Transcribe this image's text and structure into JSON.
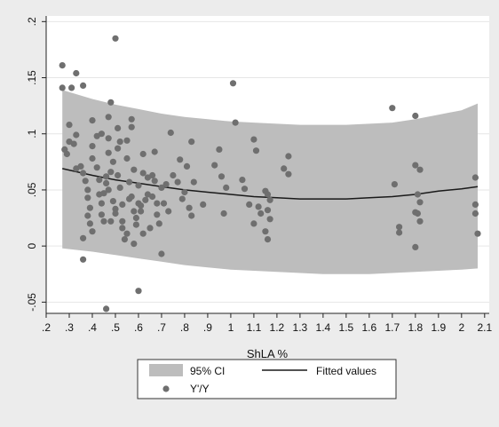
{
  "chart_data": {
    "type": "scatter",
    "title": "",
    "xlabel": "ShLA %",
    "ylabel": "",
    "xlim": [
      0.2,
      2.12
    ],
    "ylim": [
      -0.06,
      0.205
    ],
    "x_ticks": [
      0.2,
      0.3,
      0.4,
      0.5,
      0.6,
      0.7,
      0.8,
      0.9,
      1.0,
      1.1,
      1.2,
      1.3,
      1.4,
      1.5,
      1.6,
      1.7,
      1.8,
      1.9,
      2.0,
      2.1
    ],
    "x_tick_labels": [
      ".2",
      ".3",
      ".4",
      ".5",
      ".6",
      ".7",
      ".8",
      ".9",
      "1",
      "1.1",
      "1.2",
      "1.3",
      "1.4",
      "1.5",
      "1.6",
      "1.7",
      "1.8",
      "1.9",
      "2",
      "2.1"
    ],
    "y_ticks": [
      -0.05,
      0,
      0.05,
      0.1,
      0.15,
      0.2
    ],
    "y_tick_labels": [
      "-.05",
      "0",
      ".05",
      ".1",
      ".15",
      ".2"
    ],
    "grid": true,
    "legend_position": "bottom",
    "legend": {
      "ci_label": "95% CI",
      "fit_label": "Fitted values",
      "points_label": "Y'/Y"
    },
    "colors": {
      "ci_band": "#bdbdbd",
      "fit_line": "#1a1a1a",
      "points": "#6f6f6f",
      "plot_bg": "#ffffff",
      "outer_bg": "#ececec"
    },
    "fit": {
      "x": [
        0.27,
        0.4,
        0.5,
        0.6,
        0.7,
        0.8,
        0.9,
        1.0,
        1.1,
        1.2,
        1.3,
        1.4,
        1.5,
        1.6,
        1.7,
        1.8,
        1.9,
        2.0,
        2.07
      ],
      "y": [
        0.069,
        0.063,
        0.059,
        0.056,
        0.053,
        0.05,
        0.048,
        0.046,
        0.044,
        0.043,
        0.042,
        0.042,
        0.042,
        0.043,
        0.044,
        0.046,
        0.049,
        0.051,
        0.053
      ],
      "ci_upper": [
        0.139,
        0.131,
        0.126,
        0.122,
        0.118,
        0.115,
        0.113,
        0.111,
        0.11,
        0.109,
        0.108,
        0.108,
        0.108,
        0.109,
        0.11,
        0.113,
        0.117,
        0.121,
        0.127
      ],
      "ci_lower": [
        -0.002,
        -0.005,
        -0.008,
        -0.011,
        -0.014,
        -0.017,
        -0.019,
        -0.021,
        -0.022,
        -0.023,
        -0.024,
        -0.025,
        -0.025,
        -0.025,
        -0.024,
        -0.023,
        -0.022,
        -0.021,
        -0.02
      ]
    },
    "series": [
      {
        "name": "Y'/Y",
        "points": [
          [
            0.27,
            0.161
          ],
          [
            0.27,
            0.141
          ],
          [
            0.31,
            0.141
          ],
          [
            0.33,
            0.154
          ],
          [
            0.36,
            0.143
          ],
          [
            0.33,
            0.099
          ],
          [
            0.3,
            0.108
          ],
          [
            0.3,
            0.093
          ],
          [
            0.28,
            0.086
          ],
          [
            0.29,
            0.082
          ],
          [
            0.32,
            0.091
          ],
          [
            0.33,
            0.069
          ],
          [
            0.35,
            0.071
          ],
          [
            0.36,
            0.065
          ],
          [
            0.37,
            0.058
          ],
          [
            0.38,
            0.05
          ],
          [
            0.38,
            0.043
          ],
          [
            0.39,
            0.034
          ],
          [
            0.38,
            0.027
          ],
          [
            0.39,
            0.02
          ],
          [
            0.4,
            0.013
          ],
          [
            0.36,
            0.007
          ],
          [
            0.36,
            -0.012
          ],
          [
            0.4,
            0.112
          ],
          [
            0.4,
            0.078
          ],
          [
            0.42,
            0.098
          ],
          [
            0.42,
            0.07
          ],
          [
            0.43,
            0.059
          ],
          [
            0.43,
            0.046
          ],
          [
            0.44,
            0.038
          ],
          [
            0.44,
            0.028
          ],
          [
            0.45,
            0.022
          ],
          [
            0.46,
            0.056
          ],
          [
            0.46,
            0.062
          ],
          [
            0.47,
            0.115
          ],
          [
            0.47,
            0.096
          ],
          [
            0.47,
            0.083
          ],
          [
            0.47,
            0.05
          ],
          [
            0.48,
            0.128
          ],
          [
            0.48,
            0.066
          ],
          [
            0.49,
            0.075
          ],
          [
            0.49,
            0.04
          ],
          [
            0.5,
            0.033
          ],
          [
            0.5,
            0.029
          ],
          [
            0.5,
            0.185
          ],
          [
            0.51,
            0.105
          ],
          [
            0.51,
            0.087
          ],
          [
            0.51,
            0.063
          ],
          [
            0.52,
            0.093
          ],
          [
            0.52,
            0.052
          ],
          [
            0.53,
            0.022
          ],
          [
            0.53,
            0.016
          ],
          [
            0.54,
            0.006
          ],
          [
            0.55,
            0.094
          ],
          [
            0.55,
            0.078
          ],
          [
            0.56,
            0.057
          ],
          [
            0.56,
            0.042
          ],
          [
            0.57,
            0.113
          ],
          [
            0.57,
            0.106
          ],
          [
            0.57,
            0.044
          ],
          [
            0.58,
            0.068
          ],
          [
            0.58,
            0.031
          ],
          [
            0.59,
            0.025
          ],
          [
            0.59,
            0.019
          ],
          [
            0.6,
            0.054
          ],
          [
            0.6,
            0.038
          ],
          [
            0.6,
            -0.04
          ],
          [
            0.61,
            0.036
          ],
          [
            0.61,
            0.031
          ],
          [
            0.62,
            0.082
          ],
          [
            0.62,
            0.065
          ],
          [
            0.63,
            0.041
          ],
          [
            0.64,
            0.061
          ],
          [
            0.64,
            0.046
          ],
          [
            0.65,
            0.016
          ],
          [
            0.66,
            0.063
          ],
          [
            0.66,
            0.044
          ],
          [
            0.67,
            0.084
          ],
          [
            0.67,
            0.058
          ],
          [
            0.68,
            0.038
          ],
          [
            0.68,
            0.028
          ],
          [
            0.69,
            0.02
          ],
          [
            0.7,
            0.052
          ],
          [
            0.7,
            -0.007
          ],
          [
            0.72,
            0.055
          ],
          [
            0.73,
            0.031
          ],
          [
            0.74,
            0.101
          ],
          [
            0.75,
            0.063
          ],
          [
            0.77,
            0.057
          ],
          [
            0.78,
            0.077
          ],
          [
            0.79,
            0.042
          ],
          [
            0.8,
            0.048
          ],
          [
            0.81,
            0.071
          ],
          [
            0.82,
            0.034
          ],
          [
            0.83,
            0.093
          ],
          [
            0.84,
            0.057
          ],
          [
            0.83,
            0.027
          ],
          [
            0.88,
            0.037
          ],
          [
            0.93,
            0.072
          ],
          [
            0.95,
            0.086
          ],
          [
            0.96,
            0.062
          ],
          [
            0.97,
            0.029
          ],
          [
            0.98,
            0.052
          ],
          [
            1.01,
            0.145
          ],
          [
            1.02,
            0.11
          ],
          [
            1.05,
            0.059
          ],
          [
            1.06,
            0.051
          ],
          [
            1.08,
            0.037
          ],
          [
            1.1,
            0.095
          ],
          [
            1.11,
            0.085
          ],
          [
            1.12,
            0.035
          ],
          [
            1.13,
            0.029
          ],
          [
            1.1,
            0.02
          ],
          [
            1.15,
            0.049
          ],
          [
            1.16,
            0.046
          ],
          [
            1.17,
            0.041
          ],
          [
            1.16,
            0.032
          ],
          [
            1.17,
            0.024
          ],
          [
            1.15,
            0.013
          ],
          [
            1.16,
            0.006
          ],
          [
            1.23,
            0.069
          ],
          [
            1.25,
            0.064
          ],
          [
            1.25,
            0.08
          ],
          [
            1.7,
            0.123
          ],
          [
            1.71,
            0.055
          ],
          [
            1.73,
            0.017
          ],
          [
            1.73,
            0.012
          ],
          [
            1.8,
            0.116
          ],
          [
            1.8,
            0.072
          ],
          [
            1.81,
            0.046
          ],
          [
            1.82,
            0.068
          ],
          [
            1.82,
            0.039
          ],
          [
            1.8,
            0.03
          ],
          [
            1.81,
            0.029
          ],
          [
            1.82,
            0.022
          ],
          [
            1.8,
            -0.001
          ],
          [
            2.06,
            0.061
          ],
          [
            2.06,
            0.037
          ],
          [
            2.06,
            0.029
          ],
          [
            2.07,
            0.011
          ],
          [
            0.46,
            -0.056
          ],
          [
            0.4,
            0.089
          ],
          [
            0.44,
            0.1
          ],
          [
            0.45,
            0.047
          ],
          [
            0.48,
            0.022
          ],
          [
            0.53,
            0.037
          ],
          [
            0.55,
            0.011
          ],
          [
            0.58,
            0.002
          ],
          [
            0.62,
            0.011
          ],
          [
            0.71,
            0.038
          ]
        ]
      }
    ]
  }
}
